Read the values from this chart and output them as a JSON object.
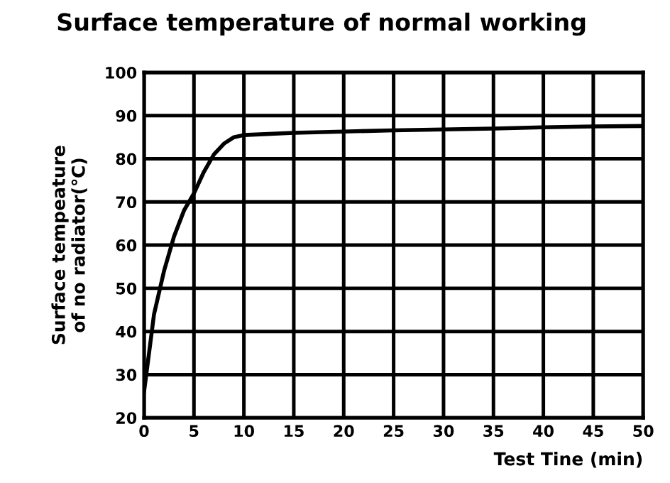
{
  "chart_data": {
    "type": "line",
    "title": "Surface temperature of normal working",
    "xlabel": "Test Tine (min)",
    "ylabel": "Surface tempeature\nof no radiator(℃)",
    "series": [
      {
        "color": "#000000",
        "x": [
          0,
          0.5,
          1,
          2,
          3,
          4,
          5,
          6,
          7,
          8,
          9,
          10,
          15,
          20,
          25,
          30,
          35,
          40,
          45,
          50
        ],
        "values": [
          26,
          35,
          44,
          54,
          62,
          68,
          72,
          77,
          81,
          83.5,
          85,
          85.5,
          86,
          86.3,
          86.6,
          86.8,
          87,
          87.3,
          87.5,
          87.6
        ]
      }
    ],
    "xlim": [
      0,
      50
    ],
    "ylim": [
      20,
      100
    ],
    "xticks": [
      0,
      5,
      10,
      15,
      20,
      25,
      30,
      35,
      40,
      45,
      50
    ],
    "yticks": [
      20,
      30,
      40,
      50,
      60,
      70,
      80,
      90,
      100
    ],
    "grid": true,
    "legend": false,
    "marker": "none",
    "line_style": "solid"
  }
}
